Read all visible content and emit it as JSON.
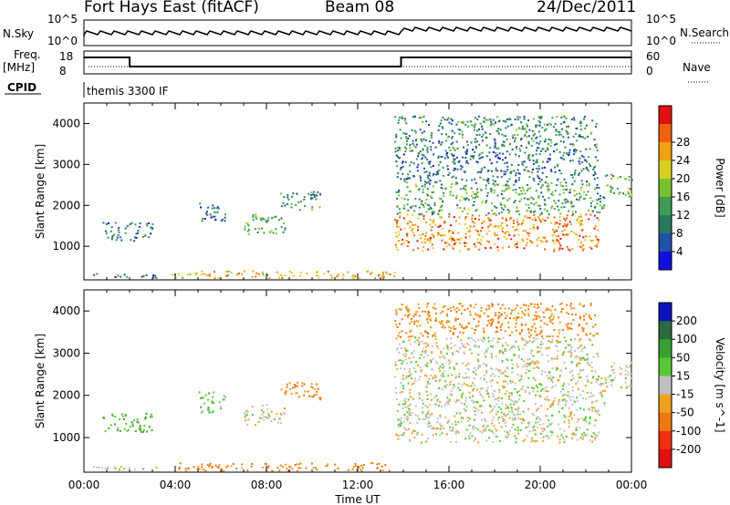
{
  "header": {
    "station": "Fort Hays East (fitACF)",
    "beam": "Beam 08",
    "date": "24/Dec/2011"
  },
  "top_panels": {
    "nsky_label": "N.Sky",
    "nsky_ticks": [
      "10^5",
      "10^0"
    ],
    "nsearch_label": "N.Search",
    "nsearch_ticks": [
      "10^5",
      "10^0"
    ],
    "freq_label_1": "Freq.",
    "freq_label_2": "[MHz]",
    "freq_ticks": [
      "18",
      "8"
    ],
    "nave_label": "Nave",
    "nave_ticks": [
      "60",
      "0"
    ],
    "cpid_label": "CPID",
    "cpid_value": "themis 3300 IF"
  },
  "chart_data": [
    {
      "type": "heatmap",
      "name": "power",
      "ylabel": "Slant Range [km]",
      "xlabel": "Time UT",
      "x_ticks": [
        "00:00",
        "04:00",
        "08:00",
        "12:00",
        "16:00",
        "20:00",
        "00:00"
      ],
      "ylim": [
        180,
        4500
      ],
      "y_ticks": [
        1000,
        2000,
        3000,
        4000
      ],
      "colorbar": {
        "label": "Power [dB]",
        "ticks": [
          "4",
          "8",
          "12",
          "16",
          "20",
          "24",
          "28"
        ],
        "colors": [
          "#1010e0",
          "#2050a8",
          "#2a7860",
          "#3e9a56",
          "#78c030",
          "#d8d020",
          "#f0a010",
          "#f06010",
          "#e01010"
        ]
      },
      "regions": [
        {
          "t": [
            0.4,
            3.3
          ],
          "r": [
            250,
            350
          ],
          "value": 8
        },
        {
          "t": [
            0.8,
            3.0
          ],
          "r": [
            1150,
            1600
          ],
          "value": 8
        },
        {
          "t": [
            3.8,
            13.8
          ],
          "r": [
            230,
            420
          ],
          "value": 22
        },
        {
          "t": [
            5.0,
            6.2
          ],
          "r": [
            1600,
            2100
          ],
          "value": 8
        },
        {
          "t": [
            7.0,
            8.8
          ],
          "r": [
            1300,
            1800
          ],
          "value": 12
        },
        {
          "t": [
            8.6,
            10.4
          ],
          "r": [
            1900,
            2350
          ],
          "value": 10
        },
        {
          "t": [
            13.6,
            22.6
          ],
          "r": [
            900,
            1800
          ],
          "value": 24
        },
        {
          "t": [
            13.6,
            22.8
          ],
          "r": [
            1800,
            2600
          ],
          "value": 12
        },
        {
          "t": [
            13.6,
            22.5
          ],
          "r": [
            2600,
            3400
          ],
          "value": 8
        },
        {
          "t": [
            13.6,
            22.5
          ],
          "r": [
            3400,
            4200
          ],
          "value": 10
        },
        {
          "t": [
            22.8,
            24.0
          ],
          "r": [
            2200,
            2800
          ],
          "value": 14
        }
      ]
    },
    {
      "type": "heatmap",
      "name": "velocity",
      "ylabel": "Slant Range [km]",
      "xlabel": "Time UT",
      "x_ticks": [
        "00:00",
        "04:00",
        "08:00",
        "12:00",
        "16:00",
        "20:00",
        "00:00"
      ],
      "ylim": [
        180,
        4500
      ],
      "y_ticks": [
        1000,
        2000,
        3000,
        4000
      ],
      "colorbar": {
        "label": "Velocity [m s^-1]",
        "ticks": [
          "200",
          "100",
          "50",
          "15",
          "-15",
          "-50",
          "-100",
          "-200"
        ],
        "colors": [
          "#1010c0",
          "#2a6a40",
          "#38a030",
          "#58c838",
          "#c0c0c0",
          "#f0a020",
          "#f07810",
          "#f03010",
          "#e01010"
        ]
      },
      "regions": [
        {
          "t": [
            0.4,
            3.3
          ],
          "r": [
            250,
            350
          ],
          "value": 0
        },
        {
          "t": [
            0.8,
            3.0
          ],
          "r": [
            1150,
            1600
          ],
          "value": 50
        },
        {
          "t": [
            3.8,
            13.8
          ],
          "r": [
            230,
            420
          ],
          "value": -60
        },
        {
          "t": [
            5.0,
            6.2
          ],
          "r": [
            1600,
            2100
          ],
          "value": 40
        },
        {
          "t": [
            7.0,
            8.8
          ],
          "r": [
            1300,
            1800
          ],
          "value": 0
        },
        {
          "t": [
            8.6,
            10.4
          ],
          "r": [
            1900,
            2350
          ],
          "value": -60
        },
        {
          "t": [
            13.6,
            22.6
          ],
          "r": [
            900,
            1800
          ],
          "value": 0
        },
        {
          "t": [
            13.6,
            22.8
          ],
          "r": [
            1800,
            2600
          ],
          "value": 0
        },
        {
          "t": [
            13.6,
            22.5
          ],
          "r": [
            2600,
            3400
          ],
          "value": 0
        },
        {
          "t": [
            13.6,
            22.5
          ],
          "r": [
            3400,
            4200
          ],
          "value": -60
        },
        {
          "t": [
            22.8,
            24.0
          ],
          "r": [
            2200,
            2800
          ],
          "value": 0
        }
      ]
    }
  ]
}
